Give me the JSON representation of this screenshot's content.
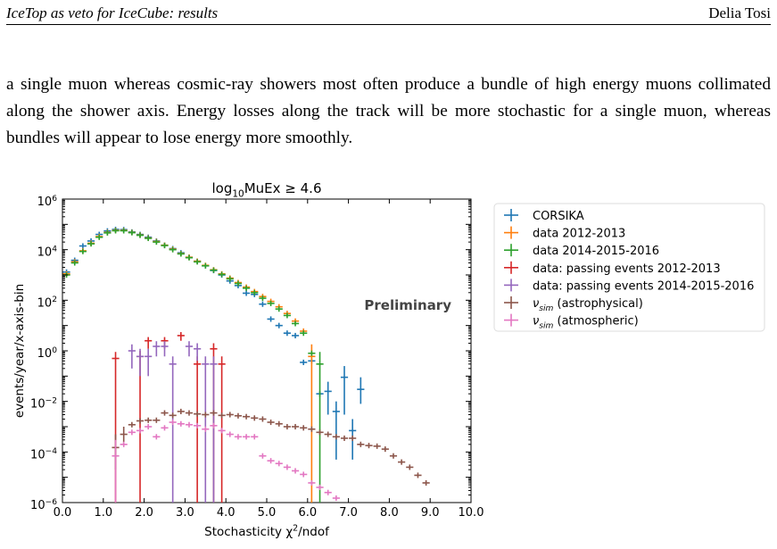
{
  "header": {
    "left": "IceTop as veto for IceCube: results",
    "right": "Delia Tosi"
  },
  "body_text": "a single muon whereas cosmic-ray showers most often produce a bundle of high energy muons collimated along the shower axis. Energy losses along the track will be more stochastic for a single muon, whereas bundles will appear to lose energy more smoothly.",
  "chart_data": {
    "type": "scatter",
    "title": "log10MuEx ≥ 4.6",
    "title_parts": {
      "main": "log",
      "sub": "10",
      "rest": "MuEx ≥ 4.6"
    },
    "xlabel": "Stochasticity χ²/ndof",
    "xlabel_parts": {
      "main": "Stochasticity χ",
      "sup": "2",
      "rest": "/ndof"
    },
    "ylabel": "events/year/x-axis-bin",
    "annotation": "Preliminary",
    "xlim": [
      0,
      10
    ],
    "ylog": true,
    "ylim": [
      1e-06,
      1000000.0
    ],
    "xticks": [
      "0.0",
      "1.0",
      "2.0",
      "3.0",
      "4.0",
      "5.0",
      "6.0",
      "7.0",
      "8.0",
      "9.0",
      "10.0"
    ],
    "yticks": [
      {
        "exp": 6,
        "label": "10",
        "sup": "6"
      },
      {
        "exp": 4,
        "label": "10",
        "sup": "4"
      },
      {
        "exp": 2,
        "label": "10",
        "sup": "2"
      },
      {
        "exp": 0,
        "label": "10",
        "sup": "0"
      },
      {
        "exp": -2,
        "label": "10",
        "sup": "−2"
      },
      {
        "exp": -4,
        "label": "10",
        "sup": "−4"
      },
      {
        "exp": -6,
        "label": "10",
        "sup": "−6"
      }
    ],
    "legend_position": "outside-right",
    "series": [
      {
        "name": "CORSIKA",
        "color": "#1f77b4",
        "points": [
          [
            0.1,
            1300
          ],
          [
            0.3,
            3800
          ],
          [
            0.5,
            14000
          ],
          [
            0.7,
            22000
          ],
          [
            0.9,
            40000
          ],
          [
            1.1,
            55000
          ],
          [
            1.3,
            63000
          ],
          [
            1.5,
            62000
          ],
          [
            1.7,
            50000
          ],
          [
            1.9,
            40000
          ],
          [
            2.1,
            31000
          ],
          [
            2.3,
            22000
          ],
          [
            2.5,
            15000
          ],
          [
            2.7,
            11000
          ],
          [
            2.9,
            7500
          ],
          [
            3.1,
            5000
          ],
          [
            3.3,
            3500
          ],
          [
            3.5,
            2300
          ],
          [
            3.7,
            1500
          ],
          [
            3.9,
            1000
          ],
          [
            4.1,
            580
          ],
          [
            4.3,
            380
          ],
          [
            4.5,
            190
          ],
          [
            4.7,
            170
          ],
          [
            4.9,
            70
          ],
          [
            5.1,
            18
          ],
          [
            5.3,
            10
          ],
          [
            5.5,
            5
          ],
          [
            5.7,
            4
          ],
          [
            5.9,
            0.35
          ],
          [
            6.1,
            0.4
          ],
          [
            6.3,
            0.02
          ],
          {
            "x": 6.5,
            "y": 0.025,
            "lo": 0.003,
            "hi": 0.06
          },
          {
            "x": 6.7,
            "y": 0.004,
            "lo": 5e-05,
            "hi": 0.01
          },
          {
            "x": 6.9,
            "y": 0.09,
            "lo": 0.003,
            "hi": 0.25
          },
          {
            "x": 7.1,
            "y": 0.0007,
            "lo": 5e-05,
            "hi": 0.002
          },
          {
            "x": 7.3,
            "y": 0.03,
            "lo": 0.008,
            "hi": 0.09
          }
        ]
      },
      {
        "name": "data 2012-2013",
        "color": "#ff7f0e",
        "points": [
          [
            0.1,
            1100
          ],
          [
            0.3,
            3300
          ],
          [
            0.5,
            9000
          ],
          [
            0.7,
            18000
          ],
          [
            0.9,
            33000
          ],
          [
            1.1,
            48000
          ],
          [
            1.3,
            58000
          ],
          [
            1.5,
            58000
          ],
          [
            1.7,
            48000
          ],
          [
            1.9,
            38000
          ],
          [
            2.1,
            29000
          ],
          [
            2.3,
            21000
          ],
          [
            2.5,
            15000
          ],
          [
            2.7,
            10500
          ],
          [
            2.9,
            7000
          ],
          [
            3.1,
            5000
          ],
          [
            3.3,
            3500
          ],
          [
            3.5,
            2400
          ],
          [
            3.7,
            1600
          ],
          [
            3.9,
            1100
          ],
          [
            4.1,
            750
          ],
          [
            4.3,
            500
          ],
          [
            4.5,
            330
          ],
          [
            4.7,
            220
          ],
          [
            4.9,
            140
          ],
          [
            5.1,
            90
          ],
          [
            5.3,
            55
          ],
          [
            5.5,
            30
          ],
          [
            5.7,
            15
          ],
          [
            5.9,
            6
          ],
          {
            "x": 6.1,
            "y": 0.6,
            "lo": 1e-06,
            "hi": 1.8
          }
        ]
      },
      {
        "name": "data 2014-2015-2016",
        "color": "#2ca02c",
        "points": [
          [
            0.1,
            1000
          ],
          [
            0.3,
            3000
          ],
          [
            0.5,
            8500
          ],
          [
            0.7,
            17000
          ],
          [
            0.9,
            31000
          ],
          [
            1.1,
            46000
          ],
          [
            1.3,
            56000
          ],
          [
            1.5,
            56000
          ],
          [
            1.7,
            47000
          ],
          [
            1.9,
            37000
          ],
          [
            2.1,
            28000
          ],
          [
            2.3,
            20000
          ],
          [
            2.5,
            14500
          ],
          [
            2.7,
            10000
          ],
          [
            2.9,
            6800
          ],
          [
            3.1,
            4800
          ],
          [
            3.3,
            3300
          ],
          [
            3.5,
            2300
          ],
          [
            3.7,
            1550
          ],
          [
            3.9,
            1050
          ],
          [
            4.1,
            700
          ],
          [
            4.3,
            460
          ],
          [
            4.5,
            300
          ],
          [
            4.7,
            200
          ],
          [
            4.9,
            120
          ],
          [
            5.1,
            75
          ],
          [
            5.3,
            45
          ],
          [
            5.5,
            25
          ],
          [
            5.7,
            12
          ],
          [
            5.9,
            5
          ],
          [
            6.1,
            0.8
          ],
          {
            "x": 6.3,
            "y": 0.3,
            "lo": 1e-06,
            "hi": 0.9
          }
        ]
      },
      {
        "name": "data: passing events 2012-2013",
        "color": "#d62728",
        "points": [
          {
            "x": 1.3,
            "y": 0.5,
            "lo": 1e-06,
            "hi": 0.9
          },
          {
            "x": 1.9,
            "y": 0.6,
            "lo": 1e-06,
            "hi": 1.0
          },
          {
            "x": 2.1,
            "y": 2.5,
            "lo": 1.2,
            "hi": 3.5
          },
          {
            "x": 2.5,
            "y": 2.5,
            "lo": 1.2,
            "hi": 3.5
          },
          {
            "x": 2.9,
            "y": 4.0,
            "lo": 2.5,
            "hi": 5.5
          },
          {
            "x": 3.3,
            "y": 0.3,
            "lo": 1e-06,
            "hi": 0.6
          },
          {
            "x": 3.7,
            "y": 1.2,
            "lo": 1e-06,
            "hi": 2.0
          },
          {
            "x": 3.9,
            "y": 0.3,
            "lo": 1e-06,
            "hi": 0.6
          }
        ]
      },
      {
        "name": "data: passing events 2014-2015-2016",
        "color": "#9467bd",
        "points": [
          {
            "x": 1.7,
            "y": 1.0,
            "lo": 0.2,
            "hi": 1.8
          },
          {
            "x": 1.9,
            "y": 0.6,
            "lo": 0.1,
            "hi": 1.2
          },
          {
            "x": 2.1,
            "y": 0.6,
            "lo": 0.1,
            "hi": 1.2
          },
          {
            "x": 2.3,
            "y": 1.5,
            "lo": 0.6,
            "hi": 2.4
          },
          {
            "x": 2.5,
            "y": 1.5,
            "lo": 0.6,
            "hi": 2.4
          },
          {
            "x": 2.7,
            "y": 0.3,
            "lo": 1e-06,
            "hi": 0.6
          },
          {
            "x": 3.1,
            "y": 1.5,
            "lo": 0.6,
            "hi": 2.4
          },
          {
            "x": 3.3,
            "y": 1.2,
            "lo": 0.4,
            "hi": 2.0
          },
          {
            "x": 3.5,
            "y": 0.3,
            "lo": 1e-06,
            "hi": 0.6
          },
          {
            "x": 3.7,
            "y": 0.3,
            "lo": 1e-06,
            "hi": 0.6
          }
        ]
      },
      {
        "name": "ν_sim (astrophysical)",
        "color": "#8c564b",
        "legend_parts": {
          "main": "ν",
          "sub": "sim",
          "rest": " (astrophysical)"
        },
        "points": [
          {
            "x": 1.3,
            "y": 0.00015,
            "lo": 2e-05,
            "hi": 0.0005
          },
          {
            "x": 1.5,
            "y": 0.0005,
            "lo": 0.0002,
            "hi": 0.001
          },
          [
            1.7,
            0.0012
          ],
          [
            1.9,
            0.0017
          ],
          [
            2.1,
            0.0018
          ],
          [
            2.3,
            0.0018
          ],
          [
            2.5,
            0.0035
          ],
          [
            2.7,
            0.0028
          ],
          [
            2.9,
            0.004
          ],
          [
            3.1,
            0.0035
          ],
          [
            3.3,
            0.0032
          ],
          [
            3.5,
            0.003
          ],
          [
            3.7,
            0.0035
          ],
          [
            3.9,
            0.0028
          ],
          [
            4.1,
            0.003
          ],
          [
            4.3,
            0.0027
          ],
          [
            4.5,
            0.0025
          ],
          [
            4.7,
            0.0022
          ],
          [
            4.9,
            0.002
          ],
          [
            5.1,
            0.0015
          ],
          [
            5.3,
            0.0013
          ],
          [
            5.5,
            0.001
          ],
          [
            5.7,
            0.001
          ],
          [
            5.9,
            0.0009
          ],
          [
            6.1,
            0.0008
          ],
          [
            6.3,
            0.0006
          ],
          [
            6.5,
            0.0005
          ],
          [
            6.7,
            0.0004
          ],
          [
            6.9,
            0.00035
          ],
          [
            7.1,
            0.00035
          ],
          [
            7.3,
            0.0002
          ],
          [
            7.5,
            0.00018
          ],
          [
            7.7,
            0.00017
          ],
          [
            7.9,
            0.00013
          ],
          [
            8.1,
            7e-05
          ],
          [
            8.3,
            4e-05
          ],
          [
            8.5,
            2.5e-05
          ],
          [
            8.7,
            1.2e-05
          ],
          [
            8.9,
            6e-06
          ]
        ]
      },
      {
        "name": "ν_sim (atmospheric)",
        "color": "#e377c2",
        "legend_parts": {
          "main": "ν",
          "sub": "sim",
          "rest": " (atmospheric)"
        },
        "points": [
          {
            "x": 1.3,
            "y": 7e-05,
            "lo": 1e-06,
            "hi": 0.0003
          },
          [
            1.5,
            0.0002
          ],
          [
            1.7,
            0.0006
          ],
          [
            1.9,
            0.0007
          ],
          [
            2.1,
            0.001
          ],
          [
            2.3,
            0.0004
          ],
          [
            2.5,
            0.0009
          ],
          [
            2.7,
            0.0015
          ],
          [
            2.9,
            0.0013
          ],
          [
            3.1,
            0.0012
          ],
          [
            3.3,
            0.0011
          ],
          [
            3.5,
            0.0008
          ],
          [
            3.7,
            0.0011
          ],
          [
            3.9,
            0.0007
          ],
          [
            4.1,
            0.0005
          ],
          [
            4.3,
            0.0004
          ],
          [
            4.5,
            0.0004
          ],
          [
            4.7,
            0.0004
          ],
          [
            4.9,
            7e-05
          ],
          [
            5.1,
            4.5e-05
          ],
          [
            5.3,
            3.5e-05
          ],
          [
            5.5,
            2.5e-05
          ],
          [
            5.7,
            1.8e-05
          ],
          [
            5.9,
            1.3e-05
          ],
          [
            6.1,
            6e-06
          ],
          [
            6.3,
            4e-06
          ],
          [
            6.5,
            2.5e-06
          ],
          [
            6.7,
            1.5e-06
          ]
        ]
      }
    ]
  }
}
